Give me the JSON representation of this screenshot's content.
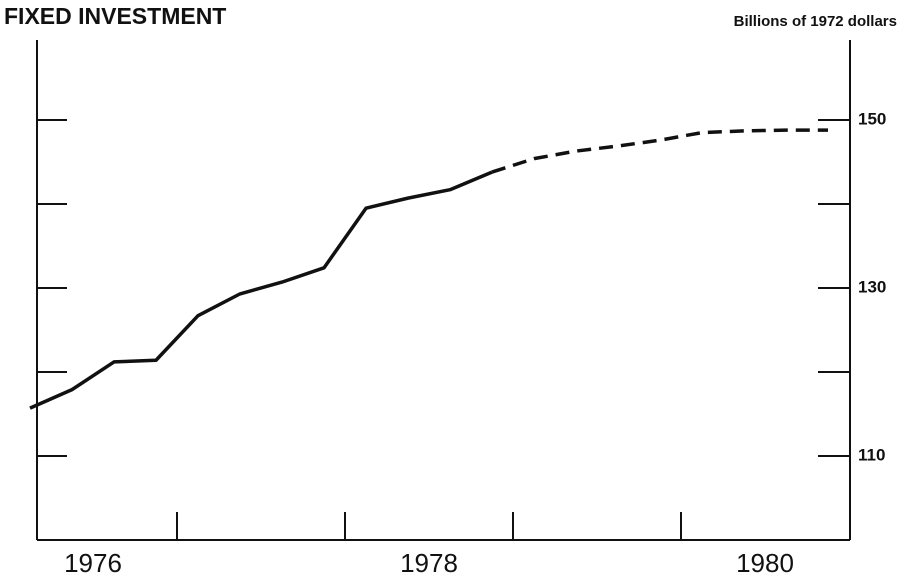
{
  "chart_data": {
    "type": "line",
    "title": "FIXED INVESTMENT",
    "y_axis_label": "Billions of 1972 dollars",
    "x": [
      1976.125,
      1976.375,
      1976.625,
      1976.875,
      1977.125,
      1977.375,
      1977.625,
      1977.875,
      1978.125,
      1978.375,
      1978.625,
      1978.875,
      1979.125,
      1979.375,
      1979.625,
      1979.875,
      1980.125,
      1980.375,
      1980.625,
      1980.875
    ],
    "series": [
      {
        "color": "#111111",
        "style": "solid",
        "values": [
          115.7,
          117.9,
          121.2,
          121.4,
          126.7,
          129.3,
          130.7,
          132.4,
          139.5,
          140.7,
          141.7,
          143.8,
          null,
          null,
          null,
          null,
          null,
          null,
          null,
          null
        ]
      },
      {
        "color": "#111111",
        "style": "dashed",
        "values": [
          null,
          null,
          null,
          null,
          null,
          null,
          null,
          null,
          null,
          null,
          null,
          143.8,
          145.4,
          146.3,
          146.9,
          147.6,
          148.5,
          148.7,
          148.8,
          148.8
        ]
      }
    ],
    "xlim": [
      1976,
      1981
    ],
    "xticks": [
      1977,
      1978,
      1979,
      1980
    ],
    "year_labels": [
      {
        "value": 1976.5,
        "label": "1976"
      },
      {
        "value": 1978.5,
        "label": "1978"
      },
      {
        "value": 1980.5,
        "label": "1980"
      }
    ],
    "ylim": [
      100,
      160
    ],
    "yticks": [
      110,
      130,
      150
    ],
    "minor_yticks": [
      120,
      140
    ],
    "y_axis_side": "right"
  }
}
